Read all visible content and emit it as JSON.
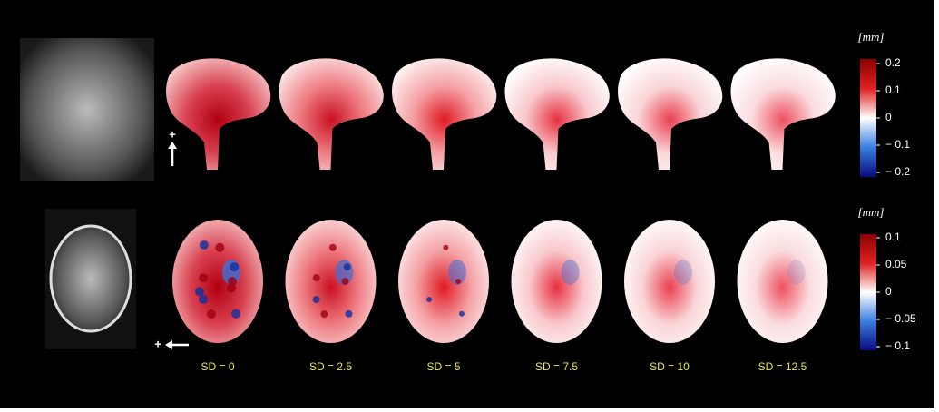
{
  "columns": [
    "SD = 0",
    "SD = 2.5",
    "SD = 5",
    "SD = 7.5",
    "SD = 10",
    "SD = 12.5"
  ],
  "orientation_marks": [
    "+",
    "+"
  ],
  "colorbars": [
    {
      "unit": "[mm]",
      "ticks": [
        "0.2",
        "0.1",
        "0",
        "− 0.1",
        "− 0.2"
      ]
    },
    {
      "unit": "[mm]",
      "ticks": [
        "0.1",
        "0.05",
        "0",
        "− 0.05",
        "− 0.1"
      ]
    }
  ]
}
